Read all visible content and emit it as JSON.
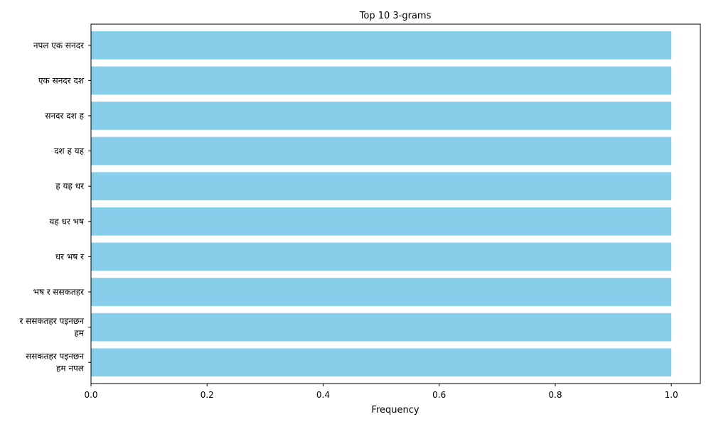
{
  "chart_data": {
    "type": "bar",
    "orientation": "horizontal",
    "title": "Top 10 3-grams",
    "xlabel": "Frequency",
    "ylabel": "",
    "xlim": [
      0,
      1.05
    ],
    "xticks": [
      "0.0",
      "0.2",
      "0.4",
      "0.6",
      "0.8",
      "1.0"
    ],
    "xtick_values": [
      0,
      0.2,
      0.4,
      0.6,
      0.8,
      1.0
    ],
    "grid": false,
    "categories": [
      [
        "नपल एक सनदर"
      ],
      [
        "एक सनदर दश"
      ],
      [
        "सनदर दश ह"
      ],
      [
        "दश ह यह"
      ],
      [
        "ह यह धर"
      ],
      [
        "यह धर भष"
      ],
      [
        "धर भष र"
      ],
      [
        "भष र ससकतहर"
      ],
      [
        "र ससकतहर पइनछन",
        "हम"
      ],
      [
        "ससकतहर पइनछन",
        "हम नपल"
      ]
    ],
    "values": [
      1,
      1,
      1,
      1,
      1,
      1,
      1,
      1,
      1,
      1
    ],
    "bar_color": "#87ceeb"
  }
}
